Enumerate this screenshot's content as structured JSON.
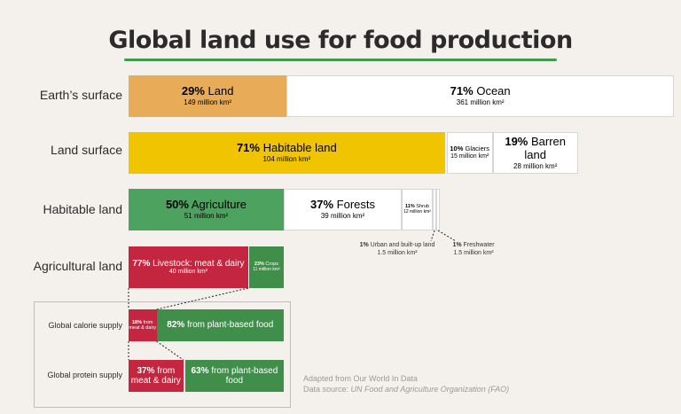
{
  "title": "Global land use for food production",
  "rows": {
    "earth": {
      "label": "Earth’s surface",
      "land": {
        "pct": "29%",
        "name": "Land",
        "area": "149 million km²",
        "value": 29
      },
      "ocean": {
        "pct": "71%",
        "name": "Ocean",
        "area": "361 million km²",
        "value": 71
      }
    },
    "land": {
      "label": "Land surface",
      "habitable": {
        "pct": "71%",
        "name": "Habitable land",
        "area": "104 million km²",
        "value": 71
      },
      "glaciers": {
        "pct": "10%",
        "name": "Glaciers",
        "area": "15 million km²",
        "value": 10
      },
      "barren": {
        "pct": "19%",
        "name": "Barren land",
        "area": "28 million km²",
        "value": 19
      }
    },
    "habitable": {
      "label": "Habitable land",
      "agriculture": {
        "pct": "50%",
        "name": "Agriculture",
        "area": "51 million km²",
        "value": 50
      },
      "forests": {
        "pct": "37%",
        "name": "Forests",
        "area": "39 million km²",
        "value": 37
      },
      "shrub": {
        "pct": "11%",
        "name": "Shrub",
        "area": "12 million km²",
        "value": 11
      },
      "urban": {
        "pct": "1%",
        "name": "Urban and built-up land",
        "area": "1.5 million km²",
        "value": 1
      },
      "freshwater": {
        "pct": "1%",
        "name": "Freshwater",
        "area": "1.5 million km²",
        "value": 1
      }
    },
    "agricultural": {
      "label": "Agricultural land",
      "livestock": {
        "pct": "77%",
        "name": "Livestock: meat & dairy",
        "area": "40 million km²",
        "value": 77
      },
      "crops": {
        "pct": "23%",
        "name": "Crops",
        "area": "11 million km²",
        "value": 23
      }
    },
    "calorie": {
      "label": "Global calorie supply",
      "meat": {
        "pct": "18%",
        "name": "from meat & dairy",
        "value": 18
      },
      "plant": {
        "pct": "82%",
        "name": "from plant-based food",
        "value": 82
      }
    },
    "protein": {
      "label": "Global protein supply",
      "meat": {
        "pct": "37%",
        "name": "from meat & dairy",
        "value": 37
      },
      "plant": {
        "pct": "63%",
        "name": "from plant-based food",
        "value": 63
      }
    }
  },
  "source": {
    "line1": "Adapted from Our World In Data",
    "prefix": "Data source: ",
    "org": "UN Food and Agriculture Organization (FAO)"
  },
  "colors": {
    "land": "#e8ab58",
    "habitable": "#f1c400",
    "agriculture": "#4ea25f",
    "livestock": "#c4253f",
    "crops": "#3f8f4a",
    "plant": "#3f8f4a",
    "white": "#ffffff"
  },
  "chart_data": {
    "type": "bar",
    "title": "Global land use for food production",
    "categories": [
      "Earth’s surface",
      "Land surface",
      "Habitable land",
      "Agricultural land",
      "Global calorie supply",
      "Global protein supply"
    ],
    "series": [
      {
        "name": "Earth’s surface",
        "values": [
          {
            "label": "Land",
            "pct": 29,
            "area_million_km2": 149
          },
          {
            "label": "Ocean",
            "pct": 71,
            "area_million_km2": 361
          }
        ]
      },
      {
        "name": "Land surface",
        "values": [
          {
            "label": "Habitable land",
            "pct": 71,
            "area_million_km2": 104
          },
          {
            "label": "Glaciers",
            "pct": 10,
            "area_million_km2": 15
          },
          {
            "label": "Barren land",
            "pct": 19,
            "area_million_km2": 28
          }
        ]
      },
      {
        "name": "Habitable land",
        "values": [
          {
            "label": "Agriculture",
            "pct": 50,
            "area_million_km2": 51
          },
          {
            "label": "Forests",
            "pct": 37,
            "area_million_km2": 39
          },
          {
            "label": "Shrub",
            "pct": 11,
            "area_million_km2": 12
          },
          {
            "label": "Urban and built-up land",
            "pct": 1,
            "area_million_km2": 1.5
          },
          {
            "label": "Freshwater",
            "pct": 1,
            "area_million_km2": 1.5
          }
        ]
      },
      {
        "name": "Agricultural land",
        "values": [
          {
            "label": "Livestock: meat & dairy",
            "pct": 77,
            "area_million_km2": 40
          },
          {
            "label": "Crops",
            "pct": 23,
            "area_million_km2": 11
          }
        ]
      },
      {
        "name": "Global calorie supply",
        "values": [
          {
            "label": "from meat & dairy",
            "pct": 18
          },
          {
            "label": "from plant-based food",
            "pct": 82
          }
        ]
      },
      {
        "name": "Global protein supply",
        "values": [
          {
            "label": "from meat & dairy",
            "pct": 37
          },
          {
            "label": "from plant-based food",
            "pct": 63
          }
        ]
      }
    ]
  }
}
